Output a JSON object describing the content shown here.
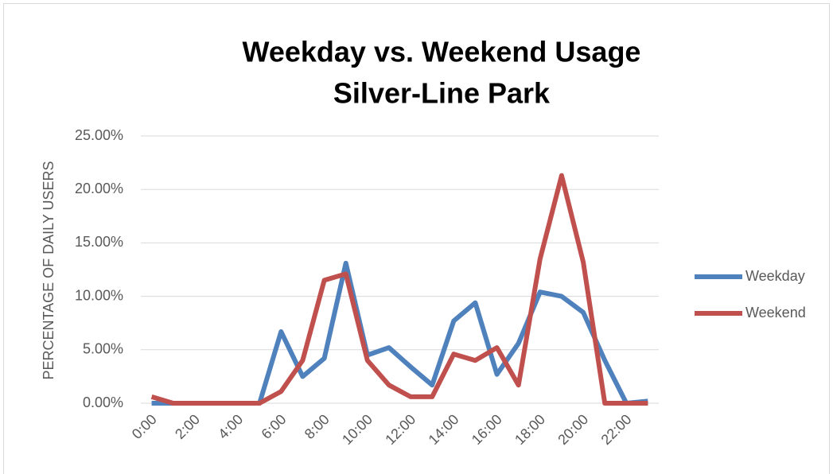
{
  "chart_data": {
    "type": "line",
    "title": "Weekday vs. Weekend Usage",
    "subtitle": "Silver-Line Park",
    "y_label": "PERCENTAGE OF DAILY USERS",
    "categories": [
      "0:00",
      null,
      "2:00",
      null,
      "4:00",
      null,
      "6:00",
      null,
      "8:00",
      null,
      "10:00",
      null,
      "12:00",
      null,
      "14:00",
      null,
      "16:00",
      null,
      "18:00",
      null,
      "20:00",
      null,
      "22:00",
      null
    ],
    "series": [
      {
        "name": "Weekday",
        "color": "#4f81bd",
        "values": [
          0,
          0,
          0,
          0,
          0,
          0,
          6.7,
          2.5,
          4.2,
          13.1,
          4.5,
          5.2,
          3.4,
          1.7,
          7.7,
          9.4,
          2.7,
          5.6,
          10.4,
          10.0,
          8.5,
          4.0,
          0,
          0.2
        ]
      },
      {
        "name": "Weekend",
        "color": "#c0504d",
        "values": [
          0.6,
          0,
          0,
          0,
          0,
          0,
          1.1,
          4.0,
          11.5,
          12.1,
          4.0,
          1.7,
          0.6,
          0.6,
          4.6,
          4.0,
          5.2,
          1.7,
          13.5,
          21.3,
          13.2,
          0,
          0,
          0
        ]
      }
    ],
    "ylim": [
      0,
      25
    ],
    "yticks": [
      {
        "value": 0,
        "label": "0.00%"
      },
      {
        "value": 5,
        "label": "5.00%"
      },
      {
        "value": 10,
        "label": "10.00%"
      },
      {
        "value": 15,
        "label": "15.00%"
      },
      {
        "value": 20,
        "label": "20.00%"
      },
      {
        "value": 25,
        "label": "25.00%"
      }
    ],
    "grid": true,
    "legend": "right"
  }
}
